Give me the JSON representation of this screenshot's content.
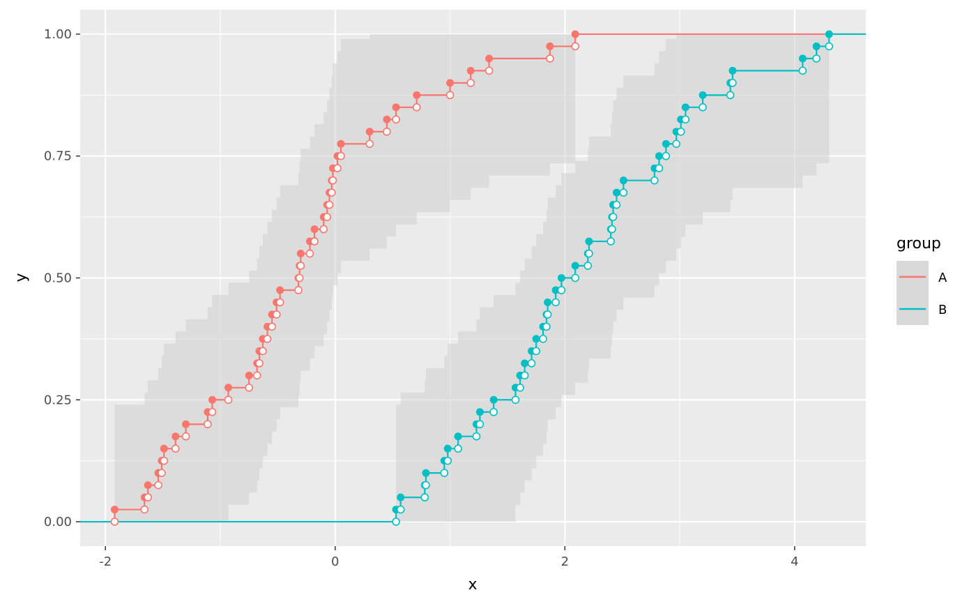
{
  "chart_data": {
    "type": "line",
    "subtype": "ecdf-step-with-confidence-band",
    "xlabel": "x",
    "ylabel": "y",
    "xlim": [
      -2.22,
      4.62
    ],
    "ylim": [
      -0.05,
      1.05
    ],
    "x_ticks": [
      -2,
      0,
      2,
      4
    ],
    "x_tick_labels": [
      "-2",
      "0",
      "2",
      "4"
    ],
    "y_ticks": [
      0,
      0.25,
      0.5,
      0.75,
      1
    ],
    "y_tick_labels": [
      "0.00",
      "0.25",
      "0.50",
      "0.75",
      "1.00"
    ],
    "grid": true,
    "legend": {
      "title": "group",
      "position": "right"
    },
    "series": [
      {
        "name": "A",
        "color": "#F8766D",
        "x": [
          -1.92,
          -1.66,
          -1.63,
          -1.54,
          -1.51,
          -1.49,
          -1.39,
          -1.3,
          -1.11,
          -1.07,
          -0.93,
          -0.75,
          -0.68,
          -0.66,
          -0.63,
          -0.59,
          -0.55,
          -0.51,
          -0.48,
          -0.32,
          -0.31,
          -0.3,
          -0.22,
          -0.18,
          -0.1,
          -0.07,
          -0.05,
          -0.03,
          -0.02,
          0.02,
          0.05,
          0.3,
          0.45,
          0.53,
          0.71,
          1.0,
          1.18,
          1.34,
          1.87,
          2.09
        ],
        "y": [
          0.025,
          0.05,
          0.075,
          0.1,
          0.125,
          0.15,
          0.175,
          0.2,
          0.225,
          0.25,
          0.275,
          0.3,
          0.325,
          0.35,
          0.375,
          0.4,
          0.425,
          0.45,
          0.475,
          0.5,
          0.525,
          0.55,
          0.575,
          0.6,
          0.625,
          0.65,
          0.675,
          0.7,
          0.725,
          0.75,
          0.775,
          0.8,
          0.825,
          0.85,
          0.875,
          0.9,
          0.925,
          0.95,
          0.975,
          1.0
        ],
        "band_lower": [
          0,
          0,
          0,
          0,
          0,
          0,
          0,
          0,
          0,
          0,
          0.035,
          0.06,
          0.085,
          0.11,
          0.135,
          0.16,
          0.185,
          0.21,
          0.235,
          0.26,
          0.285,
          0.31,
          0.335,
          0.36,
          0.385,
          0.41,
          0.435,
          0.46,
          0.485,
          0.51,
          0.535,
          0.56,
          0.585,
          0.61,
          0.635,
          0.66,
          0.685,
          0.71,
          0.735,
          0.76
        ],
        "band_upper": [
          0.24,
          0.265,
          0.29,
          0.315,
          0.34,
          0.365,
          0.39,
          0.415,
          0.44,
          0.465,
          0.49,
          0.515,
          0.54,
          0.565,
          0.59,
          0.615,
          0.64,
          0.665,
          0.69,
          0.715,
          0.74,
          0.765,
          0.79,
          0.815,
          0.84,
          0.865,
          0.89,
          0.915,
          0.94,
          0.965,
          0.99,
          1.0,
          1.0,
          1.0,
          1.0,
          1.0,
          1.0,
          1.0,
          1.0,
          1.0
        ]
      },
      {
        "name": "B",
        "color": "#00BFC4",
        "x": [
          0.53,
          0.57,
          0.78,
          0.79,
          0.95,
          0.98,
          1.07,
          1.23,
          1.26,
          1.38,
          1.57,
          1.61,
          1.65,
          1.71,
          1.75,
          1.81,
          1.84,
          1.85,
          1.92,
          1.97,
          2.09,
          2.2,
          2.21,
          2.4,
          2.41,
          2.42,
          2.45,
          2.51,
          2.78,
          2.82,
          2.88,
          2.97,
          3.01,
          3.05,
          3.2,
          3.44,
          3.46,
          4.07,
          4.19,
          4.3
        ],
        "y": [
          0.025,
          0.05,
          0.075,
          0.1,
          0.125,
          0.15,
          0.175,
          0.2,
          0.225,
          0.25,
          0.275,
          0.3,
          0.325,
          0.35,
          0.375,
          0.4,
          0.425,
          0.45,
          0.475,
          0.5,
          0.525,
          0.55,
          0.575,
          0.6,
          0.625,
          0.65,
          0.675,
          0.7,
          0.725,
          0.75,
          0.775,
          0.8,
          0.825,
          0.85,
          0.875,
          0.9,
          0.925,
          0.95,
          0.975,
          1.0
        ],
        "band_lower": [
          0,
          0,
          0,
          0,
          0,
          0,
          0,
          0,
          0,
          0,
          0.035,
          0.06,
          0.085,
          0.11,
          0.135,
          0.16,
          0.185,
          0.21,
          0.235,
          0.26,
          0.285,
          0.31,
          0.335,
          0.36,
          0.385,
          0.41,
          0.435,
          0.46,
          0.485,
          0.51,
          0.535,
          0.56,
          0.585,
          0.61,
          0.635,
          0.66,
          0.685,
          0.71,
          0.735,
          0.76
        ],
        "band_upper": [
          0.24,
          0.265,
          0.29,
          0.315,
          0.34,
          0.365,
          0.39,
          0.415,
          0.44,
          0.465,
          0.49,
          0.515,
          0.54,
          0.565,
          0.59,
          0.615,
          0.64,
          0.665,
          0.69,
          0.715,
          0.74,
          0.765,
          0.79,
          0.815,
          0.84,
          0.865,
          0.89,
          0.915,
          0.94,
          0.965,
          0.99,
          1.0,
          1.0,
          1.0,
          1.0,
          1.0,
          1.0,
          1.0,
          1.0,
          1.0
        ]
      }
    ],
    "colors": {
      "panel_background": "#EBEBEB",
      "grid_major": "#FFFFFF",
      "band_fill": "#D9D9D9",
      "tick_text": "#4D4D4D"
    }
  }
}
